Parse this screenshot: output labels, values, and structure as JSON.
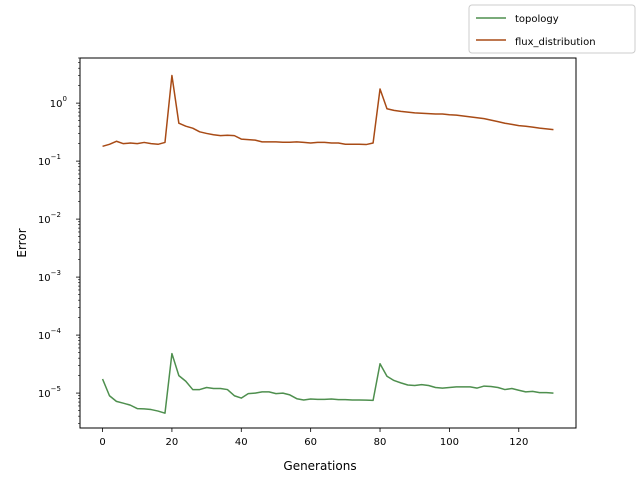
{
  "chart_data": {
    "type": "line",
    "xlabel": "Generations",
    "ylabel": "Error",
    "xlim": [
      -6.5,
      136.5
    ],
    "ylim": [
      2.5e-06,
      6.0
    ],
    "yscale": "log",
    "grid": false,
    "legend_position": "top-right",
    "x_ticks": [
      0,
      20,
      40,
      60,
      80,
      100,
      120
    ],
    "y_ticks": [
      {
        "value": 1e-05,
        "base": "10",
        "exp": "−5"
      },
      {
        "value": 0.0001,
        "base": "10",
        "exp": "−4"
      },
      {
        "value": 0.001,
        "base": "10",
        "exp": "−3"
      },
      {
        "value": 0.01,
        "base": "10",
        "exp": "−2"
      },
      {
        "value": 0.1,
        "base": "10",
        "exp": "−1"
      },
      {
        "value": 1,
        "base": "10",
        "exp": "0"
      }
    ],
    "x": [
      0,
      2,
      4,
      6,
      8,
      10,
      12,
      14,
      16,
      18,
      20,
      22,
      24,
      26,
      28,
      30,
      32,
      34,
      36,
      38,
      40,
      42,
      44,
      46,
      48,
      50,
      52,
      54,
      56,
      58,
      60,
      62,
      64,
      66,
      68,
      70,
      72,
      74,
      76,
      78,
      80,
      82,
      84,
      86,
      88,
      90,
      92,
      94,
      96,
      98,
      100,
      102,
      104,
      106,
      108,
      110,
      112,
      114,
      116,
      118,
      120,
      122,
      124,
      126,
      128,
      130
    ],
    "series": [
      {
        "name": "topology",
        "color": "#4e8f4e",
        "values": [
          1.75e-05,
          9e-06,
          7.2e-06,
          6.7e-06,
          6.2e-06,
          5.4e-06,
          5.35e-06,
          5.2e-06,
          4.9e-06,
          4.5e-06,
          4.8e-05,
          2e-05,
          1.6e-05,
          1.15e-05,
          1.15e-05,
          1.25e-05,
          1.2e-05,
          1.2e-05,
          1.15e-05,
          9e-06,
          8.2e-06,
          9.8e-06,
          1e-05,
          1.05e-05,
          1.05e-05,
          9.8e-06,
          1e-05,
          9.3e-06,
          8e-06,
          7.6e-06,
          7.9e-06,
          7.8e-06,
          7.8e-06,
          7.9e-06,
          7.7e-06,
          7.7e-06,
          7.6e-06,
          7.6e-06,
          7.55e-06,
          7.5e-06,
          3.2e-05,
          1.95e-05,
          1.65e-05,
          1.5e-05,
          1.38e-05,
          1.35e-05,
          1.4e-05,
          1.35e-05,
          1.25e-05,
          1.22e-05,
          1.25e-05,
          1.28e-05,
          1.28e-05,
          1.28e-05,
          1.22e-05,
          1.32e-05,
          1.3e-05,
          1.25e-05,
          1.15e-05,
          1.2e-05,
          1.12e-05,
          1.05e-05,
          1.07e-05,
          1.02e-05,
          1.02e-05,
          1e-05
        ]
      },
      {
        "name": "flux_distribution",
        "color": "#a84b16",
        "values": [
          0.18,
          0.195,
          0.22,
          0.2,
          0.205,
          0.2,
          0.21,
          0.2,
          0.195,
          0.21,
          3.0,
          0.45,
          0.4,
          0.37,
          0.32,
          0.3,
          0.285,
          0.275,
          0.28,
          0.275,
          0.24,
          0.235,
          0.23,
          0.215,
          0.215,
          0.215,
          0.212,
          0.212,
          0.215,
          0.21,
          0.205,
          0.21,
          0.21,
          0.205,
          0.205,
          0.195,
          0.195,
          0.195,
          0.193,
          0.205,
          1.75,
          0.8,
          0.75,
          0.72,
          0.7,
          0.68,
          0.67,
          0.66,
          0.65,
          0.65,
          0.63,
          0.62,
          0.6,
          0.58,
          0.56,
          0.54,
          0.51,
          0.48,
          0.45,
          0.43,
          0.41,
          0.4,
          0.385,
          0.37,
          0.36,
          0.35
        ]
      }
    ]
  }
}
